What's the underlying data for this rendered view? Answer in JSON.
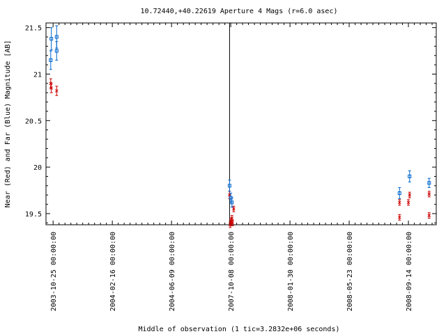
{
  "chart_data": {
    "type": "scatter",
    "title": "10.72440,+40.22619   Aperture 4 Mags (r=6.0 asec)",
    "xlabel": "Middle of observation (1 tic=3.2832e+06 seconds)",
    "ylabel": "Near (Red) and Far (Blue) Magnitude [AB]",
    "y_axis_inverted": true,
    "ylim": [
      21.55,
      19.38
    ],
    "y_ticks": [
      19.5,
      20,
      20.5,
      21,
      21.5
    ],
    "y_tick_labels": [
      "19.5",
      "20",
      "20.5",
      "21",
      "21.5"
    ],
    "xlim": [
      -0.12,
      6.47
    ],
    "x_ticks": [
      0,
      1,
      2,
      3,
      4,
      5,
      6
    ],
    "x_tick_labels": [
      "2003-10-25 00:00:00",
      "2004-02-16 00:00:00",
      "2004-06-09 00:00:00",
      "2007-10-08 00:00:00",
      "2008-01-30 00:00:00",
      "2008-05-23 00:00:00",
      "2008-09-14 00:00:00"
    ],
    "vertical_marker_x": 2.98,
    "grid": false,
    "series": [
      {
        "name": "Near",
        "color": "#cc0000",
        "marker": "x",
        "points": [
          {
            "x": -0.04,
            "y": 20.9,
            "err": 0.05
          },
          {
            "x": -0.03,
            "y": 20.85,
            "err": 0.05
          },
          {
            "x": 0.06,
            "y": 20.82,
            "err": 0.05
          },
          {
            "x": 2.98,
            "y": 19.7,
            "err": 0.04
          },
          {
            "x": 2.99,
            "y": 19.38,
            "err": 0.03
          },
          {
            "x": 3.0,
            "y": 19.42,
            "err": 0.03
          },
          {
            "x": 3.01,
            "y": 19.4,
            "err": 0.03
          },
          {
            "x": 3.02,
            "y": 19.45,
            "err": 0.03
          },
          {
            "x": 3.03,
            "y": 19.4,
            "err": 0.03
          },
          {
            "x": 3.05,
            "y": 19.55,
            "err": 0.03
          },
          {
            "x": 5.85,
            "y": 19.46,
            "err": 0.03
          },
          {
            "x": 5.85,
            "y": 19.62,
            "err": 0.03
          },
          {
            "x": 6.0,
            "y": 19.62,
            "err": 0.03
          },
          {
            "x": 6.02,
            "y": 19.7,
            "err": 0.03
          },
          {
            "x": 6.35,
            "y": 19.48,
            "err": 0.03
          },
          {
            "x": 6.35,
            "y": 19.71,
            "err": 0.03
          }
        ]
      },
      {
        "name": "Far",
        "color": "#0066cc",
        "marker": "square",
        "points": [
          {
            "x": -0.04,
            "y": 21.15,
            "err": 0.1
          },
          {
            "x": -0.03,
            "y": 21.38,
            "err": 0.12
          },
          {
            "x": 0.06,
            "y": 21.25,
            "err": 0.1
          },
          {
            "x": 0.06,
            "y": 21.4,
            "err": 0.12
          },
          {
            "x": 2.98,
            "y": 19.8,
            "err": 0.06
          },
          {
            "x": 3.0,
            "y": 19.67,
            "err": 0.05
          },
          {
            "x": 3.02,
            "y": 19.62,
            "err": 0.05
          },
          {
            "x": 5.85,
            "y": 19.72,
            "err": 0.06
          },
          {
            "x": 6.02,
            "y": 19.9,
            "err": 0.06
          },
          {
            "x": 6.35,
            "y": 19.83,
            "err": 0.05
          }
        ]
      }
    ]
  }
}
